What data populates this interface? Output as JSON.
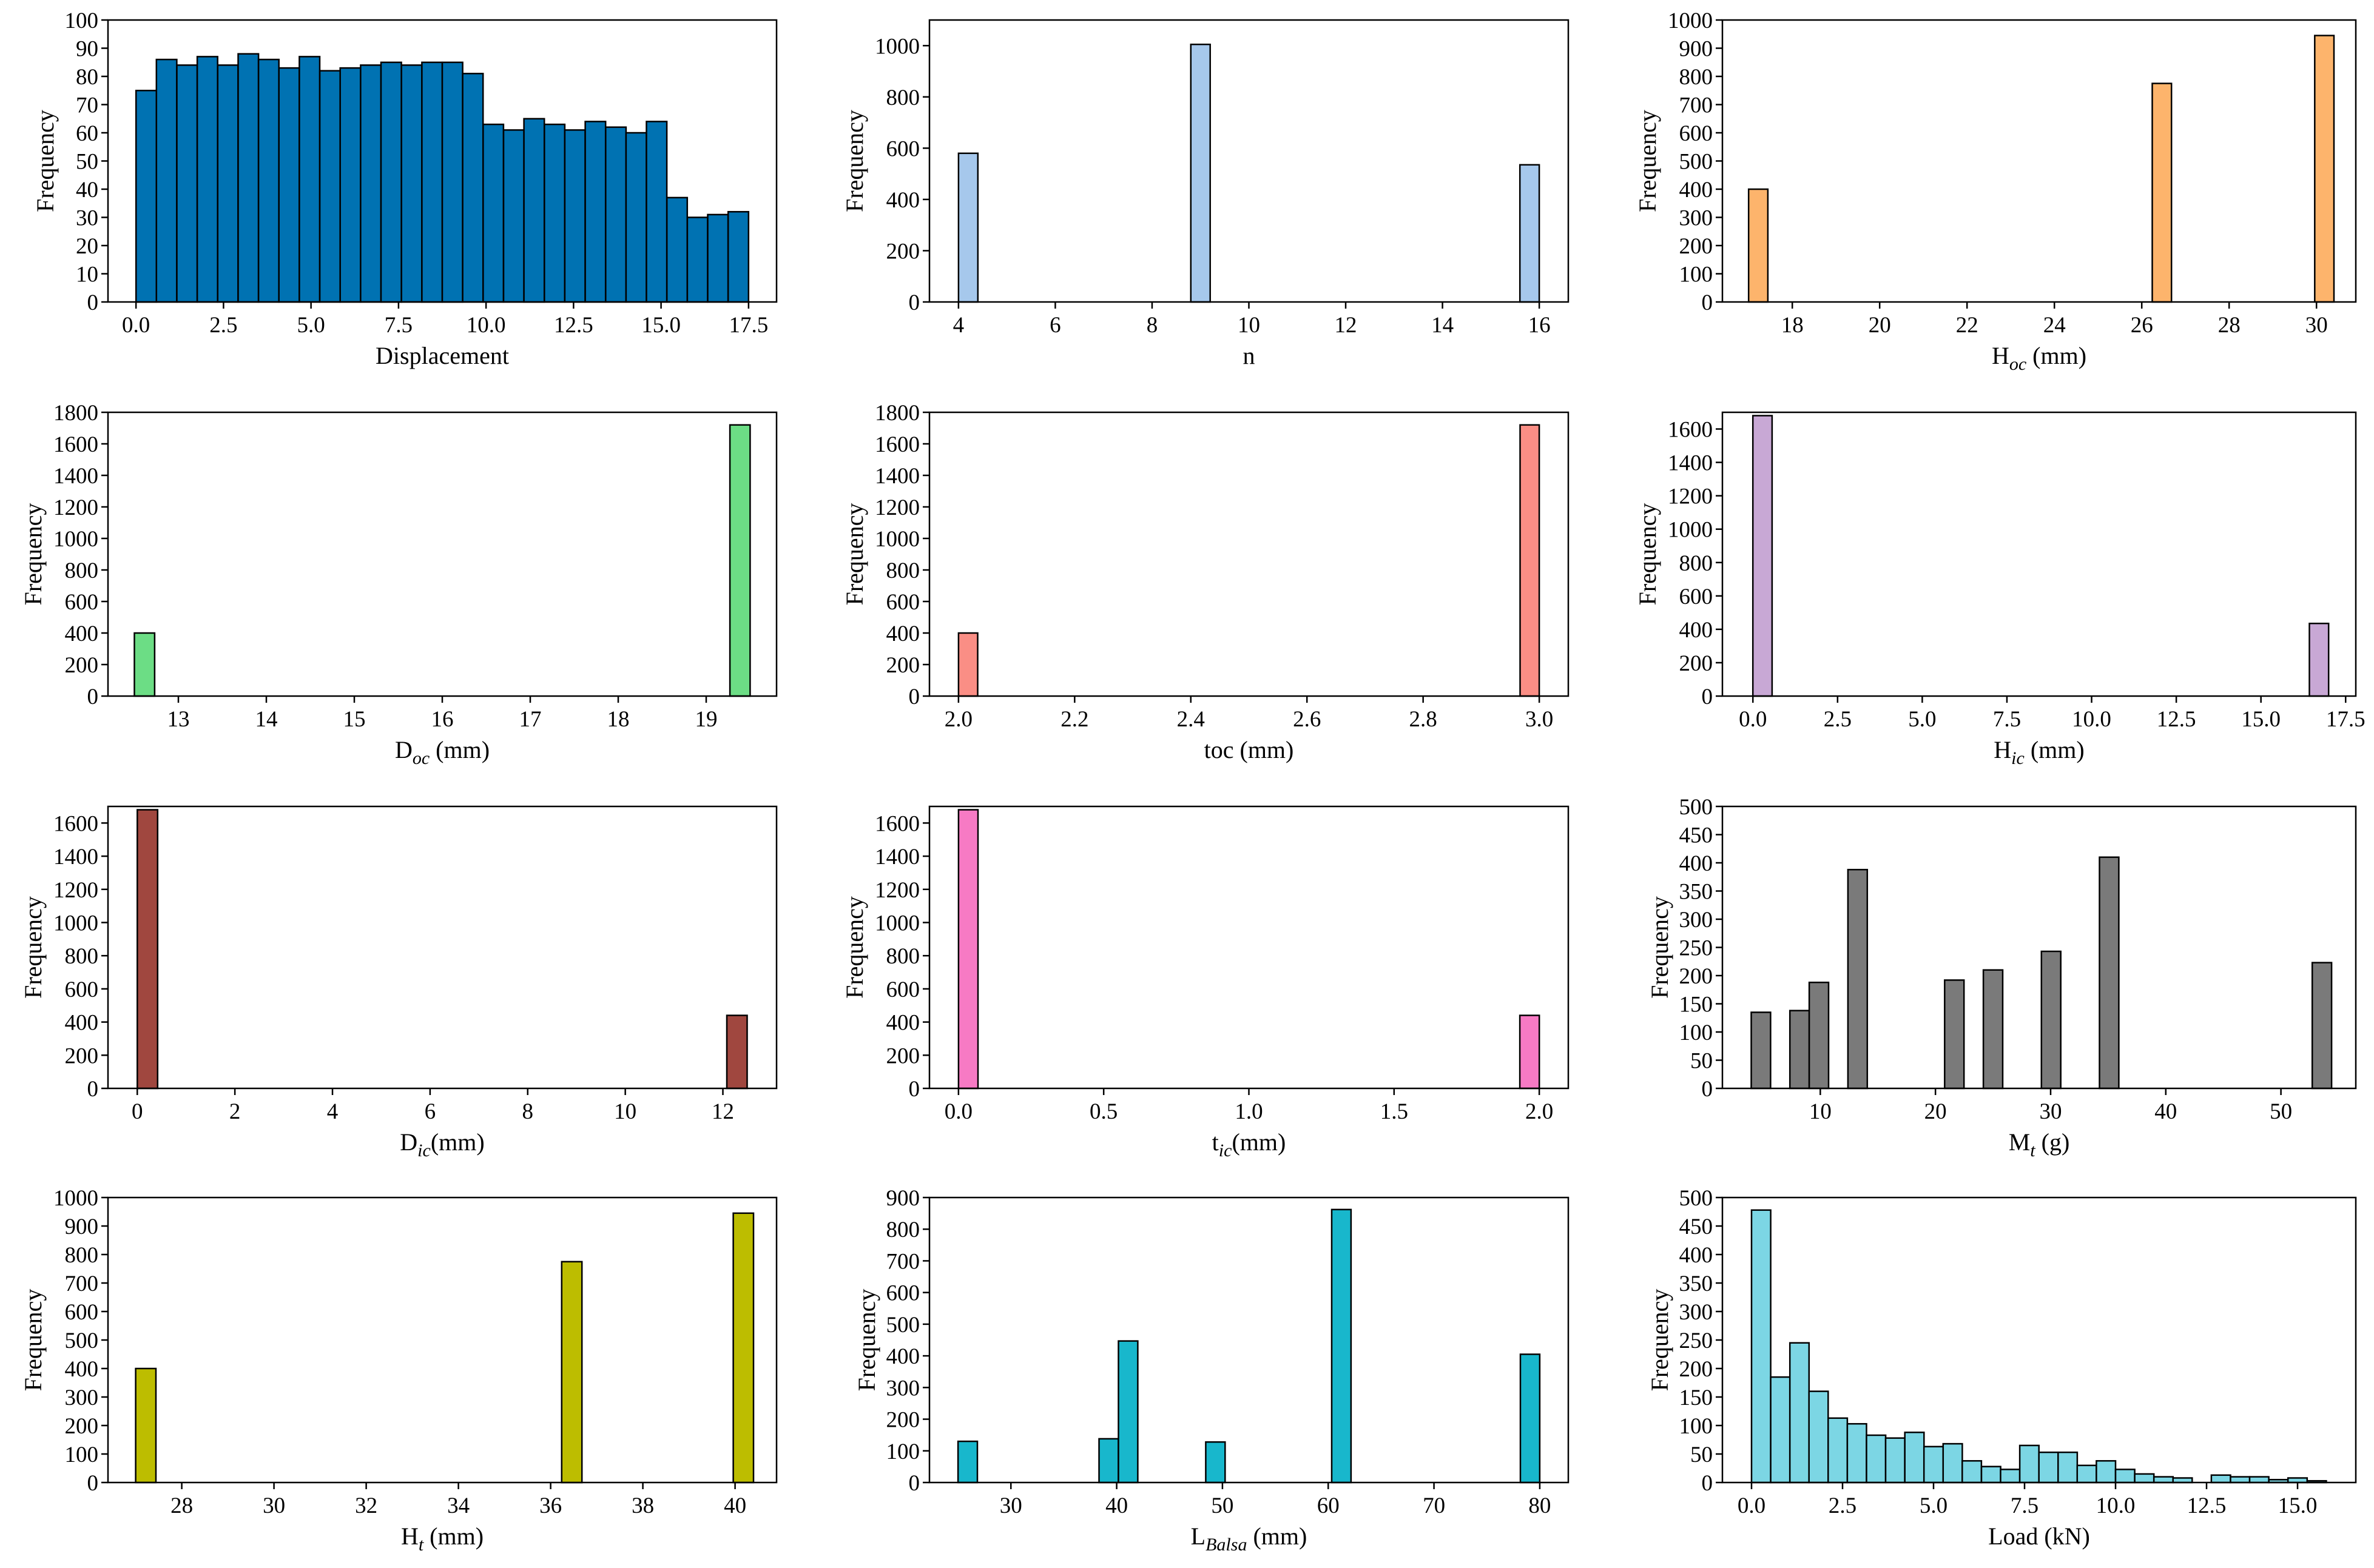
{
  "chart_data": [
    {
      "type": "bar",
      "color": "#0072B2",
      "xlabel": "Displacement",
      "xlabel_sub": "",
      "xlabel_suffix": "",
      "ylabel": "Frequency",
      "xlim": [
        -0.8,
        18.3
      ],
      "ylim": [
        0,
        100
      ],
      "xticks": [
        0,
        2.5,
        5,
        7.5,
        10,
        12.5,
        15,
        17.5
      ],
      "xtick_labels": [
        "0.0",
        "2.5",
        "5.0",
        "7.5",
        "10.0",
        "12.5",
        "15.0",
        "17.5"
      ],
      "yticks": [
        0,
        10,
        20,
        30,
        40,
        50,
        60,
        70,
        80,
        90,
        100
      ],
      "ytick_labels": [
        "0",
        "10",
        "20",
        "30",
        "40",
        "50",
        "60",
        "70",
        "80",
        "90",
        "100"
      ],
      "bin_width": 0.583,
      "bins": [
        0.0,
        0.583,
        1.167,
        1.75,
        2.333,
        2.917,
        3.5,
        4.083,
        4.667,
        5.25,
        5.833,
        6.417,
        7.0,
        7.583,
        8.167,
        8.75,
        9.333,
        9.917,
        10.5,
        11.083,
        11.667,
        12.25,
        12.833,
        13.417,
        14.0,
        14.583,
        15.167,
        15.75,
        16.333,
        16.917
      ],
      "values": [
        75,
        86,
        84,
        87,
        84,
        88,
        86,
        83,
        87,
        82,
        83,
        84,
        85,
        84,
        85,
        85,
        81,
        63,
        61,
        65,
        63,
        61,
        64,
        62,
        60,
        64,
        37,
        30,
        31,
        32
      ]
    },
    {
      "type": "bar",
      "color": "#A6C8EC",
      "xlabel": "n",
      "xlabel_sub": "",
      "xlabel_suffix": "",
      "ylabel": "Frequency",
      "xlim": [
        3.4,
        16.6
      ],
      "ylim": [
        0,
        1100
      ],
      "xticks": [
        4,
        6,
        8,
        10,
        12,
        14,
        16
      ],
      "xtick_labels": [
        "4",
        "6",
        "8",
        "10",
        "12",
        "14",
        "16"
      ],
      "yticks": [
        0,
        200,
        400,
        600,
        800,
        1000
      ],
      "ytick_labels": [
        "0",
        "200",
        "400",
        "600",
        "800",
        "1000"
      ],
      "bin_width": 0.4,
      "bins": [
        4.0,
        8.8,
        15.6
      ],
      "values": [
        580,
        1005,
        535
      ]
    },
    {
      "type": "bar",
      "color": "#FDB46C",
      "xlabel": "H",
      "xlabel_sub": "oc",
      "xlabel_suffix": " (mm)",
      "ylabel": "Frequency",
      "xlim": [
        16.4,
        30.9
      ],
      "ylim": [
        0,
        1000
      ],
      "xticks": [
        18,
        20,
        22,
        24,
        26,
        28,
        30
      ],
      "xtick_labels": [
        "18",
        "20",
        "22",
        "24",
        "26",
        "28",
        "30"
      ],
      "yticks": [
        0,
        100,
        200,
        300,
        400,
        500,
        600,
        700,
        800,
        900,
        1000
      ],
      "ytick_labels": [
        "0",
        "100",
        "200",
        "300",
        "400",
        "500",
        "600",
        "700",
        "800",
        "900",
        "1000"
      ],
      "bin_width": 0.44,
      "bins": [
        17.0,
        26.24,
        29.96
      ],
      "values": [
        400,
        775,
        945
      ]
    },
    {
      "type": "bar",
      "color": "#6CDD85",
      "xlabel": "D",
      "xlabel_sub": "oc",
      "xlabel_suffix": " (mm)",
      "ylabel": "Frequency",
      "xlim": [
        12.2,
        19.8
      ],
      "ylim": [
        0,
        1800
      ],
      "xticks": [
        13,
        14,
        15,
        16,
        17,
        18,
        19
      ],
      "xtick_labels": [
        "13",
        "14",
        "15",
        "16",
        "17",
        "18",
        "19"
      ],
      "yticks": [
        0,
        200,
        400,
        600,
        800,
        1000,
        1200,
        1400,
        1600,
        1800
      ],
      "ytick_labels": [
        "0",
        "200",
        "400",
        "600",
        "800",
        "1000",
        "1200",
        "1400",
        "1600",
        "1800"
      ],
      "bin_width": 0.23,
      "bins": [
        12.5,
        19.27
      ],
      "values": [
        400,
        1720
      ]
    },
    {
      "type": "bar",
      "color": "#FA8E85",
      "xlabel": "toc (mm)",
      "xlabel_sub": "",
      "xlabel_suffix": "",
      "ylabel": "Frequency",
      "xlim": [
        1.95,
        3.05
      ],
      "ylim": [
        0,
        1800
      ],
      "xticks": [
        2.0,
        2.2,
        2.4,
        2.6,
        2.8,
        3.0
      ],
      "xtick_labels": [
        "2.0",
        "2.2",
        "2.4",
        "2.6",
        "2.8",
        "3.0"
      ],
      "yticks": [
        0,
        200,
        400,
        600,
        800,
        1000,
        1200,
        1400,
        1600,
        1800
      ],
      "ytick_labels": [
        "0",
        "200",
        "400",
        "600",
        "800",
        "1000",
        "1200",
        "1400",
        "1600",
        "1800"
      ],
      "bin_width": 0.033,
      "bins": [
        2.0,
        2.967
      ],
      "values": [
        400,
        1720
      ]
    },
    {
      "type": "bar",
      "color": "#C8A8D5",
      "xlabel": "H",
      "xlabel_sub": "ic",
      "xlabel_suffix": " (mm)",
      "ylabel": "Frequency",
      "xlim": [
        -0.9,
        17.8
      ],
      "ylim": [
        0,
        1700
      ],
      "xticks": [
        0,
        2.5,
        5,
        7.5,
        10,
        12.5,
        15,
        17.5
      ],
      "xtick_labels": [
        "0.0",
        "2.5",
        "5.0",
        "7.5",
        "10.0",
        "12.5",
        "15.0",
        "17.5"
      ],
      "yticks": [
        0,
        200,
        400,
        600,
        800,
        1000,
        1200,
        1400,
        1600
      ],
      "ytick_labels": [
        "0",
        "200",
        "400",
        "600",
        "800",
        "1000",
        "1200",
        "1400",
        "1600"
      ],
      "bin_width": 0.567,
      "bins": [
        0.0,
        16.43
      ],
      "values": [
        1680,
        435
      ]
    },
    {
      "type": "bar",
      "color": "#A0473F",
      "xlabel": "D",
      "xlabel_sub": "ic",
      "xlabel_suffix": "(mm)",
      "ylabel": "Frequency",
      "xlim": [
        -0.6,
        13.1
      ],
      "ylim": [
        0,
        1700
      ],
      "xticks": [
        0,
        2,
        4,
        6,
        8,
        10,
        12
      ],
      "xtick_labels": [
        "0",
        "2",
        "4",
        "6",
        "8",
        "10",
        "12"
      ],
      "yticks": [
        0,
        200,
        400,
        600,
        800,
        1000,
        1200,
        1400,
        1600
      ],
      "ytick_labels": [
        "0",
        "200",
        "400",
        "600",
        "800",
        "1000",
        "1200",
        "1400",
        "1600"
      ],
      "bin_width": 0.417,
      "bins": [
        0.0,
        12.08
      ],
      "values": [
        1680,
        440
      ]
    },
    {
      "type": "bar",
      "color": "#F77AC4",
      "xlabel": "t",
      "xlabel_sub": "ic",
      "xlabel_suffix": "(mm)",
      "ylabel": "Frequency",
      "xlim": [
        -0.1,
        2.1
      ],
      "ylim": [
        0,
        1700
      ],
      "xticks": [
        0,
        0.5,
        1.0,
        1.5,
        2.0
      ],
      "xtick_labels": [
        "0.0",
        "0.5",
        "1.0",
        "1.5",
        "2.0"
      ],
      "yticks": [
        0,
        200,
        400,
        600,
        800,
        1000,
        1200,
        1400,
        1600
      ],
      "ytick_labels": [
        "0",
        "200",
        "400",
        "600",
        "800",
        "1000",
        "1200",
        "1400",
        "1600"
      ],
      "bin_width": 0.067,
      "bins": [
        0.0,
        1.933
      ],
      "values": [
        1680,
        440
      ]
    },
    {
      "type": "bar",
      "color": "#7A7A7A",
      "xlabel": "M",
      "xlabel_sub": "t",
      "xlabel_suffix": " (g)",
      "ylabel": "Frequency",
      "xlim": [
        1.5,
        56.5
      ],
      "ylim": [
        0,
        500
      ],
      "xticks": [
        10,
        20,
        30,
        40,
        50
      ],
      "xtick_labels": [
        "10",
        "20",
        "30",
        "40",
        "50"
      ],
      "yticks": [
        0,
        50,
        100,
        150,
        200,
        250,
        300,
        350,
        400,
        450,
        500
      ],
      "ytick_labels": [
        "0",
        "50",
        "100",
        "150",
        "200",
        "250",
        "300",
        "350",
        "400",
        "450",
        "500"
      ],
      "bin_width": 1.68,
      "bins": [
        4.0,
        7.36,
        9.04,
        12.4,
        20.8,
        24.16,
        29.2,
        34.24,
        52.72
      ],
      "values": [
        135,
        138,
        188,
        388,
        192,
        210,
        243,
        410,
        223
      ]
    },
    {
      "type": "bar",
      "color": "#BDBD00",
      "xlabel": "H",
      "xlabel_sub": "t",
      "xlabel_suffix": " (mm)",
      "ylabel": "Frequency",
      "xlim": [
        26.4,
        40.9
      ],
      "ylim": [
        0,
        1000
      ],
      "xticks": [
        28,
        30,
        32,
        34,
        36,
        38,
        40
      ],
      "xtick_labels": [
        "28",
        "30",
        "32",
        "34",
        "36",
        "38",
        "40"
      ],
      "yticks": [
        0,
        100,
        200,
        300,
        400,
        500,
        600,
        700,
        800,
        900,
        1000
      ],
      "ytick_labels": [
        "0",
        "100",
        "200",
        "300",
        "400",
        "500",
        "600",
        "700",
        "800",
        "900",
        "1000"
      ],
      "bin_width": 0.44,
      "bins": [
        27.0,
        36.24,
        39.96
      ],
      "values": [
        400,
        775,
        945
      ]
    },
    {
      "type": "bar",
      "color": "#18B7CC",
      "xlabel": "L",
      "xlabel_sub": "Balsa",
      "xlabel_suffix": " (mm)",
      "ylabel": "Frequency",
      "xlim": [
        22.3,
        82.7
      ],
      "ylim": [
        0,
        900
      ],
      "xticks": [
        30,
        40,
        50,
        60,
        70,
        80
      ],
      "xtick_labels": [
        "30",
        "40",
        "50",
        "60",
        "70",
        "80"
      ],
      "yticks": [
        0,
        100,
        200,
        300,
        400,
        500,
        600,
        700,
        800,
        900
      ],
      "ytick_labels": [
        "0",
        "100",
        "200",
        "300",
        "400",
        "500",
        "600",
        "700",
        "800",
        "900"
      ],
      "bin_width": 1.83,
      "bins": [
        25.0,
        38.33,
        40.17,
        48.42,
        60.33,
        78.17
      ],
      "values": [
        130,
        138,
        447,
        128,
        862,
        405
      ]
    },
    {
      "type": "bar",
      "color": "#7CD6E4",
      "xlabel": "Load (kN)",
      "xlabel_sub": "",
      "xlabel_suffix": "",
      "ylabel": "Frequency",
      "xlim": [
        -0.8,
        16.6
      ],
      "ylim": [
        0,
        500
      ],
      "xticks": [
        0,
        2.5,
        5,
        7.5,
        10,
        12.5,
        15
      ],
      "xtick_labels": [
        "0.0",
        "2.5",
        "5.0",
        "7.5",
        "10.0",
        "12.5",
        "15.0"
      ],
      "yticks": [
        0,
        50,
        100,
        150,
        200,
        250,
        300,
        350,
        400,
        450,
        500
      ],
      "ytick_labels": [
        "0",
        "50",
        "100",
        "150",
        "200",
        "250",
        "300",
        "350",
        "400",
        "450",
        "500"
      ],
      "bin_width": 0.526,
      "bins": [
        0.0,
        0.526,
        1.053,
        1.579,
        2.105,
        2.632,
        3.158,
        3.684,
        4.211,
        4.737,
        5.263,
        5.789,
        6.316,
        6.842,
        7.368,
        7.895,
        8.421,
        8.947,
        9.474,
        10.0,
        10.526,
        11.053,
        11.579,
        12.105,
        12.632,
        13.158,
        13.684,
        14.211,
        14.737,
        15.263
      ],
      "values": [
        478,
        185,
        245,
        160,
        113,
        103,
        83,
        78,
        88,
        63,
        68,
        38,
        28,
        23,
        65,
        53,
        53,
        30,
        38,
        23,
        15,
        10,
        8,
        0,
        13,
        10,
        10,
        5,
        8,
        3
      ]
    }
  ]
}
